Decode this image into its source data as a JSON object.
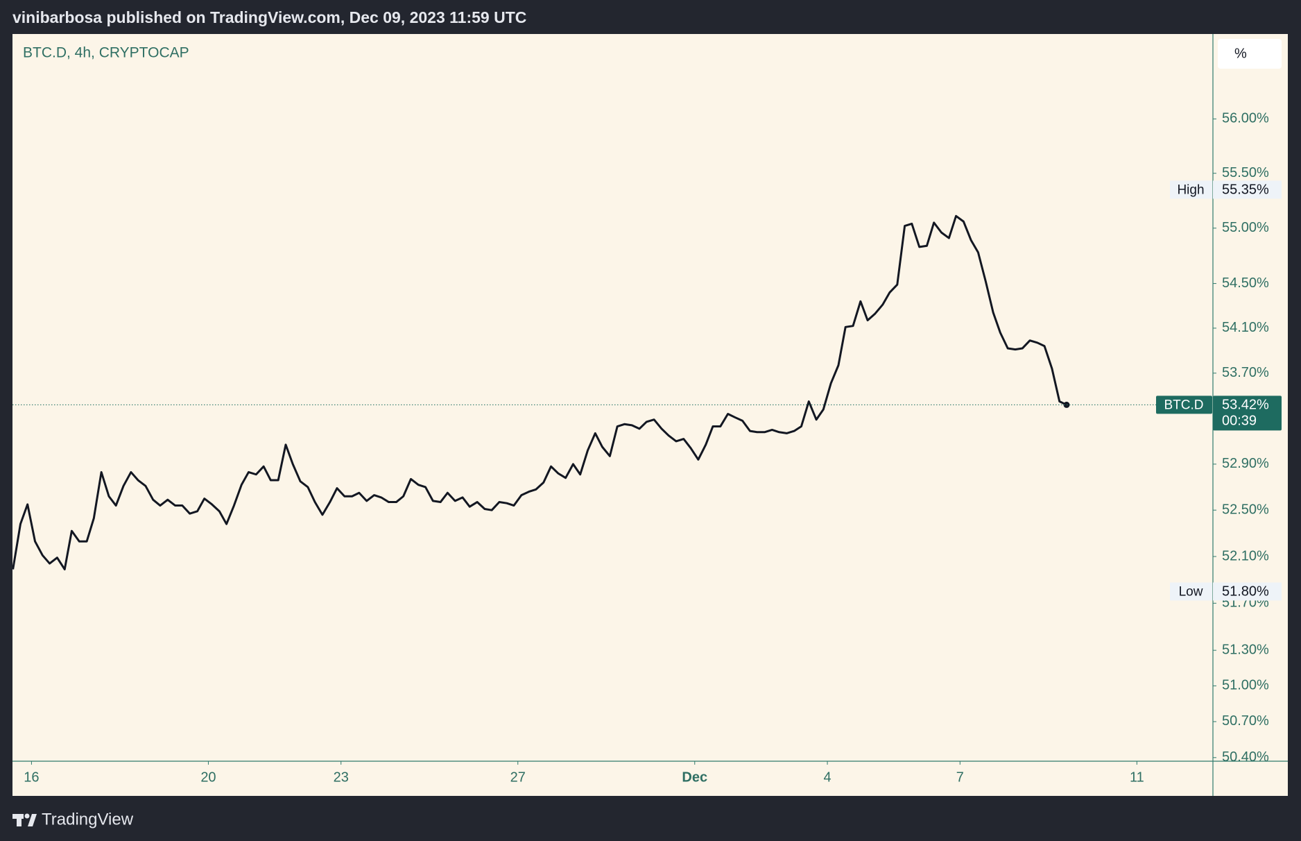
{
  "header": {
    "publisher": "vinibarbosa published on TradingView.com, Dec 09, 2023 11:59 UTC"
  },
  "footer": {
    "brand": "TradingView"
  },
  "chart_data": {
    "type": "line",
    "title": "BTC.D, 4h, CRYPTOCAP",
    "scale_button": "%",
    "log_scale": true,
    "grid": false,
    "x": [
      15.58,
      15.75,
      15.91,
      16.08,
      16.25,
      16.41,
      16.58,
      16.75,
      16.91,
      17.08,
      17.25,
      17.41,
      17.58,
      17.75,
      17.91,
      18.08,
      18.25,
      18.41,
      18.58,
      18.75,
      18.91,
      19.08,
      19.25,
      19.41,
      19.58,
      19.75,
      19.91,
      20.08,
      20.25,
      20.41,
      20.58,
      20.75,
      20.91,
      21.08,
      21.25,
      21.41,
      21.58,
      21.75,
      21.91,
      22.08,
      22.25,
      22.41,
      22.58,
      22.75,
      22.91,
      23.08,
      23.25,
      23.41,
      23.58,
      23.75,
      23.91,
      24.08,
      24.25,
      24.41,
      24.58,
      24.75,
      24.91,
      25.08,
      25.25,
      25.41,
      25.58,
      25.75,
      25.91,
      26.08,
      26.25,
      26.41,
      26.58,
      26.75,
      26.91,
      27.08,
      27.25,
      27.41,
      27.58,
      27.75,
      27.91,
      28.08,
      28.25,
      28.41,
      28.58,
      28.75,
      28.91,
      29.08,
      29.25,
      29.41,
      29.58,
      29.75,
      29.91,
      30.08,
      30.25,
      30.41,
      30.58,
      30.75,
      30.91,
      31.08,
      31.25,
      31.41,
      31.58,
      31.75,
      31.91,
      32.08,
      32.25,
      32.41,
      32.58,
      32.75,
      32.91,
      33.08,
      33.25,
      33.41,
      33.58,
      33.75,
      33.91,
      34.08,
      34.25,
      34.41,
      34.58,
      34.75,
      34.91,
      35.08,
      35.25,
      35.41,
      35.58,
      35.75,
      35.91,
      36.08,
      36.25,
      36.41,
      36.58,
      36.75,
      36.91,
      37.08,
      37.25,
      37.41,
      37.58,
      37.75,
      37.91,
      38.08,
      38.25,
      38.41,
      38.58,
      38.75,
      38.91,
      39.08,
      39.25,
      39.41
    ],
    "series": [
      {
        "name": "BTC.D",
        "color": "#131722",
        "values": [
          51.99,
          52.38,
          52.55,
          52.23,
          52.11,
          52.04,
          52.09,
          51.99,
          52.32,
          52.23,
          52.23,
          52.43,
          52.83,
          52.62,
          52.54,
          52.71,
          52.83,
          52.76,
          52.71,
          52.59,
          52.54,
          52.59,
          52.54,
          52.54,
          52.47,
          52.49,
          52.6,
          52.55,
          52.49,
          52.38,
          52.54,
          52.72,
          52.83,
          52.81,
          52.88,
          52.76,
          52.76,
          53.07,
          52.9,
          52.75,
          52.7,
          52.57,
          52.46,
          52.57,
          52.69,
          52.62,
          52.62,
          52.65,
          52.58,
          52.63,
          52.61,
          52.57,
          52.57,
          52.62,
          52.77,
          52.72,
          52.7,
          52.58,
          52.57,
          52.65,
          52.58,
          52.61,
          52.53,
          52.57,
          52.51,
          52.5,
          52.57,
          52.56,
          52.54,
          52.63,
          52.66,
          52.68,
          52.74,
          52.88,
          52.82,
          52.78,
          52.9,
          52.81,
          53.02,
          53.17,
          53.05,
          52.97,
          53.23,
          53.25,
          53.24,
          53.21,
          53.27,
          53.29,
          53.21,
          53.15,
          53.1,
          53.12,
          53.04,
          52.94,
          53.07,
          53.23,
          53.23,
          53.34,
          53.31,
          53.28,
          53.19,
          53.18,
          53.18,
          53.2,
          53.18,
          53.17,
          53.19,
          53.23,
          53.45,
          53.29,
          53.38,
          53.61,
          53.77,
          54.11,
          54.12,
          54.34,
          54.17,
          54.23,
          54.31,
          54.42,
          54.49,
          55.02,
          55.04,
          54.83,
          54.84,
          55.05,
          54.96,
          54.91,
          55.11,
          55.06,
          54.89,
          54.78,
          54.52,
          54.24,
          54.06,
          53.92,
          53.91,
          53.92,
          53.99,
          53.97,
          53.94,
          53.74,
          53.45,
          53.42
        ]
      }
    ],
    "xlim": [
      15.57,
      42.72
    ],
    "xticks": [
      16,
      20,
      23,
      27,
      {
        "value": 31,
        "label": "Dec"
      },
      {
        "value": 34,
        "label": "4"
      },
      {
        "value": 37,
        "label": "7"
      },
      {
        "value": 41,
        "label": "11"
      }
    ],
    "ylim": [
      50.37,
      56.79
    ],
    "yticks": [
      {
        "value": 56.0,
        "label": "56.00%"
      },
      {
        "value": 55.5,
        "label": "55.50%"
      },
      {
        "value": 55.0,
        "label": "55.00%"
      },
      {
        "value": 54.5,
        "label": "54.50%"
      },
      {
        "value": 54.1,
        "label": "54.10%"
      },
      {
        "value": 53.7,
        "label": "53.70%"
      },
      {
        "value": 52.9,
        "label": "52.90%"
      },
      {
        "value": 52.5,
        "label": "52.50%"
      },
      {
        "value": 52.1,
        "label": "52.10%"
      },
      {
        "value": 51.7,
        "label": "51.70%"
      },
      {
        "value": 51.3,
        "label": "51.30%"
      },
      {
        "value": 51.0,
        "label": "51.00%"
      },
      {
        "value": 50.7,
        "label": "50.70%"
      },
      {
        "value": 50.4,
        "label": "50.40%"
      }
    ],
    "price_labels": [
      {
        "name": "High",
        "value": 55.35,
        "label": "55.35%"
      },
      {
        "name": "Low",
        "value": 51.8,
        "label": "51.80%"
      }
    ],
    "last_price": {
      "value": 53.42,
      "label": "53.42%",
      "countdown": "00:39"
    }
  }
}
